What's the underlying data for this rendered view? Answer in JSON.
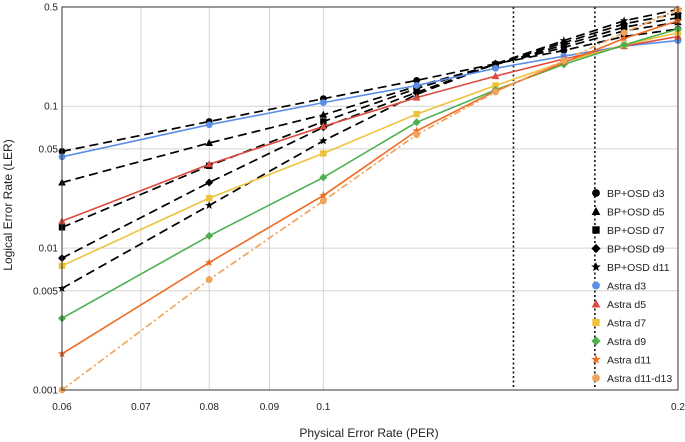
{
  "chart_data": {
    "type": "line",
    "title": "",
    "xlabel": "Physical Error Rate (PER)",
    "ylabel": "Logical Error Rate (LER)",
    "xscale": "log",
    "yscale": "log",
    "xlim": [
      0.06,
      0.2
    ],
    "ylim": [
      0.001,
      0.5
    ],
    "x_ticks": [
      0.06,
      0.07,
      0.08,
      0.09,
      0.1,
      0.2
    ],
    "x_tick_labels": [
      "0.06",
      "0.07",
      "0.08",
      "0.09",
      "0.1",
      "0.2"
    ],
    "y_ticks": [
      0.001,
      0.005,
      0.01,
      0.05,
      0.1,
      0.5
    ],
    "y_tick_labels": [
      "0.001",
      "0.005",
      "0.01",
      "0.05",
      "0.1",
      "0.5"
    ],
    "grid": true,
    "legend_position": "right",
    "vlines": [
      0.145,
      0.17
    ],
    "x": [
      0.06,
      0.08,
      0.1,
      0.12,
      0.14,
      0.16,
      0.18,
      0.2
    ],
    "series": [
      {
        "name": "BP+OSD d3",
        "color": "#000000",
        "marker": "circle",
        "dash": "dashed",
        "values": [
          0.048,
          0.078,
          0.113,
          0.152,
          0.199,
          0.247,
          0.31,
          0.35
        ]
      },
      {
        "name": "BP+OSD d5",
        "color": "#000000",
        "marker": "triangle",
        "dash": "dashed",
        "values": [
          0.029,
          0.055,
          0.087,
          0.138,
          0.197,
          0.259,
          0.34,
          0.39
        ]
      },
      {
        "name": "BP+OSD d7",
        "color": "#000000",
        "marker": "square",
        "dash": "dashed",
        "values": [
          0.014,
          0.038,
          0.078,
          0.133,
          0.197,
          0.27,
          0.36,
          0.42
        ]
      },
      {
        "name": "BP+OSD d9",
        "color": "#000000",
        "marker": "diamond",
        "dash": "dashed",
        "values": [
          0.0085,
          0.029,
          0.071,
          0.125,
          0.198,
          0.28,
          0.38,
          0.45
        ]
      },
      {
        "name": "BP+OSD d11",
        "color": "#000000",
        "marker": "star",
        "dash": "dashed",
        "values": [
          0.0052,
          0.02,
          0.057,
          0.121,
          0.199,
          0.29,
          0.4,
          0.48
        ]
      },
      {
        "name": "Astra d3",
        "color": "#5b8ee6",
        "marker": "circle",
        "dash": "solid",
        "values": [
          0.044,
          0.074,
          0.106,
          0.14,
          0.185,
          0.225,
          0.265,
          0.29
        ]
      },
      {
        "name": "Astra d5",
        "color": "#dd4b3e",
        "marker": "triangle",
        "dash": "solid",
        "values": [
          0.0155,
          0.039,
          0.072,
          0.115,
          0.163,
          0.215,
          0.265,
          0.31
        ]
      },
      {
        "name": "Astra d7",
        "color": "#eec23a",
        "marker": "square",
        "dash": "solid",
        "values": [
          0.0075,
          0.0225,
          0.0465,
          0.088,
          0.14,
          0.205,
          0.27,
          0.33
        ]
      },
      {
        "name": "Astra d9",
        "color": "#4cb04f",
        "marker": "diamond",
        "dash": "solid",
        "values": [
          0.0032,
          0.0122,
          0.0315,
          0.077,
          0.13,
          0.197,
          0.27,
          0.35
        ]
      },
      {
        "name": "Astra d11",
        "color": "#ef6a22",
        "marker": "star",
        "dash": "solid",
        "values": [
          0.0018,
          0.0079,
          0.0235,
          0.067,
          0.128,
          0.203,
          0.3,
          0.4
        ]
      },
      {
        "name": "Astra d11-d13",
        "color": "#f2a35c",
        "marker": "circle",
        "dash": "dashdot",
        "values": [
          0.001,
          0.006,
          0.0215,
          0.063,
          0.126,
          0.21,
          0.33,
          0.48
        ]
      }
    ]
  }
}
